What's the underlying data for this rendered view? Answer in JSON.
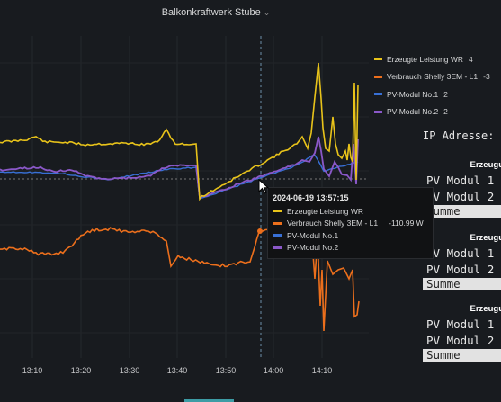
{
  "header": {
    "title": "Balkonkraftwerk Stube"
  },
  "colors": {
    "yield": "#e8c31a",
    "consumption": "#ec6f1c",
    "pv1": "#3870d6",
    "pv2": "#8a58c8"
  },
  "legend": [
    {
      "label": "Erzeugte Leistung WR",
      "value": "4",
      "color": "#e8c31a"
    },
    {
      "label": "Verbrauch Shelly 3EM - L1",
      "value": "-3",
      "color": "#ec6f1c"
    },
    {
      "label": "PV-Modul No.1",
      "value": "2",
      "color": "#3870d6"
    },
    {
      "label": "PV-Modul No.2",
      "value": "2",
      "color": "#8a58c8"
    }
  ],
  "xticks": [
    "13:10",
    "13:20",
    "13:30",
    "13:40",
    "13:50",
    "14:00",
    "14:10"
  ],
  "tooltip": {
    "time": "2024-06-19 13:57:15",
    "rows": [
      {
        "label": "Erzeugte Leistung WR",
        "value": "",
        "color": "#e8c31a"
      },
      {
        "label": "Verbrauch Shelly 3EM - L1",
        "value": "-110.99 W",
        "color": "#ec6f1c"
      },
      {
        "label": "PV-Modul No.1",
        "value": "",
        "color": "#3870d6"
      },
      {
        "label": "PV-Modul No.2",
        "value": "",
        "color": "#8a58c8"
      }
    ]
  },
  "side": {
    "ip_label": "IP Adresse:",
    "panels": [
      {
        "header": "Erzeugu",
        "modul1": "PV Modul 1",
        "modul2": "PV Modul 2",
        "sum": "Summe"
      },
      {
        "header": "Erzeugu",
        "modul1": "PV Modul 1",
        "modul2": "PV Modul 2",
        "sum": "Summe"
      },
      {
        "header": "Erzeugu",
        "modul1": "PV Modul 1",
        "modul2": "PV Modul 2",
        "sum": "Summe"
      }
    ]
  }
}
